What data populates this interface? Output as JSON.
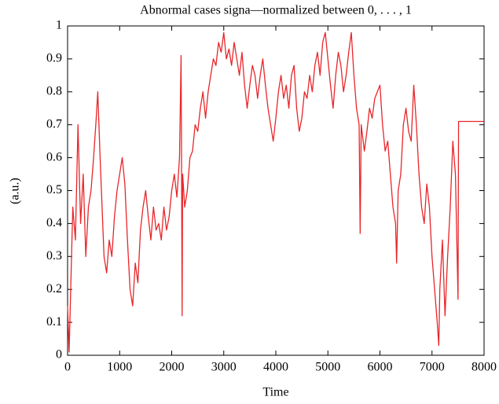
{
  "chart_data": {
    "type": "line",
    "title": "Abnormal cases signa—normalized between 0, . . . , 1",
    "xlabel": "Time",
    "ylabel": "(a.u.)",
    "color": "#e8262a",
    "xlim": [
      0,
      8000
    ],
    "xticks": [
      0,
      1000,
      2000,
      3000,
      4000,
      5000,
      6000,
      7000,
      8000
    ],
    "ylim": [
      0,
      1
    ],
    "yticks": [
      0,
      0.1,
      0.2,
      0.3,
      0.4,
      0.5,
      0.6,
      0.7,
      0.8,
      0.9,
      1
    ],
    "grid": false,
    "x": [
      0,
      30,
      60,
      100,
      150,
      200,
      250,
      300,
      350,
      400,
      450,
      500,
      550,
      580,
      620,
      650,
      700,
      750,
      800,
      850,
      900,
      950,
      1000,
      1050,
      1100,
      1150,
      1200,
      1250,
      1300,
      1350,
      1400,
      1450,
      1500,
      1550,
      1600,
      1650,
      1700,
      1750,
      1800,
      1850,
      1900,
      1950,
      2000,
      2050,
      2100,
      2150,
      2180,
      2190,
      2200,
      2210,
      2250,
      2300,
      2350,
      2400,
      2450,
      2500,
      2550,
      2600,
      2650,
      2700,
      2750,
      2800,
      2850,
      2900,
      2950,
      3000,
      3050,
      3100,
      3150,
      3200,
      3250,
      3300,
      3350,
      3400,
      3450,
      3500,
      3550,
      3600,
      3650,
      3700,
      3750,
      3800,
      3850,
      3900,
      3950,
      4000,
      4050,
      4100,
      4150,
      4200,
      4250,
      4300,
      4350,
      4400,
      4450,
      4500,
      4550,
      4600,
      4650,
      4700,
      4750,
      4800,
      4850,
      4900,
      4950,
      5000,
      5050,
      5100,
      5150,
      5200,
      5250,
      5300,
      5350,
      5400,
      5450,
      5500,
      5550,
      5600,
      5620,
      5640,
      5700,
      5750,
      5800,
      5850,
      5900,
      5950,
      6000,
      6050,
      6100,
      6150,
      6200,
      6250,
      6300,
      6320,
      6350,
      6400,
      6450,
      6500,
      6550,
      6600,
      6650,
      6700,
      6750,
      6800,
      6850,
      6900,
      6950,
      7000,
      7050,
      7100,
      7130,
      7150,
      7200,
      7250,
      7300,
      7350,
      7400,
      7450,
      7500,
      7510,
      8000
    ],
    "values": [
      0.15,
      0.01,
      0.2,
      0.45,
      0.35,
      0.7,
      0.4,
      0.55,
      0.3,
      0.45,
      0.5,
      0.6,
      0.72,
      0.8,
      0.62,
      0.5,
      0.3,
      0.25,
      0.35,
      0.3,
      0.42,
      0.5,
      0.55,
      0.6,
      0.52,
      0.35,
      0.2,
      0.15,
      0.28,
      0.22,
      0.38,
      0.45,
      0.5,
      0.42,
      0.35,
      0.45,
      0.38,
      0.4,
      0.35,
      0.45,
      0.38,
      0.42,
      0.5,
      0.55,
      0.48,
      0.6,
      0.91,
      0.55,
      0.12,
      0.55,
      0.45,
      0.5,
      0.6,
      0.62,
      0.7,
      0.68,
      0.75,
      0.8,
      0.72,
      0.8,
      0.85,
      0.9,
      0.88,
      0.95,
      0.92,
      0.98,
      0.9,
      0.93,
      0.88,
      0.95,
      0.9,
      0.85,
      0.92,
      0.82,
      0.75,
      0.82,
      0.88,
      0.85,
      0.78,
      0.85,
      0.9,
      0.82,
      0.75,
      0.7,
      0.65,
      0.72,
      0.8,
      0.85,
      0.78,
      0.82,
      0.75,
      0.85,
      0.88,
      0.75,
      0.68,
      0.72,
      0.8,
      0.78,
      0.85,
      0.8,
      0.88,
      0.92,
      0.85,
      0.95,
      0.98,
      0.9,
      0.82,
      0.75,
      0.85,
      0.92,
      0.88,
      0.8,
      0.85,
      0.92,
      0.98,
      0.85,
      0.75,
      0.7,
      0.37,
      0.7,
      0.62,
      0.68,
      0.75,
      0.72,
      0.78,
      0.8,
      0.82,
      0.7,
      0.62,
      0.65,
      0.55,
      0.45,
      0.4,
      0.28,
      0.5,
      0.55,
      0.7,
      0.75,
      0.68,
      0.65,
      0.82,
      0.7,
      0.55,
      0.45,
      0.4,
      0.52,
      0.45,
      0.3,
      0.2,
      0.1,
      0.03,
      0.2,
      0.35,
      0.12,
      0.3,
      0.45,
      0.65,
      0.55,
      0.17,
      0.71,
      0.71
    ]
  }
}
